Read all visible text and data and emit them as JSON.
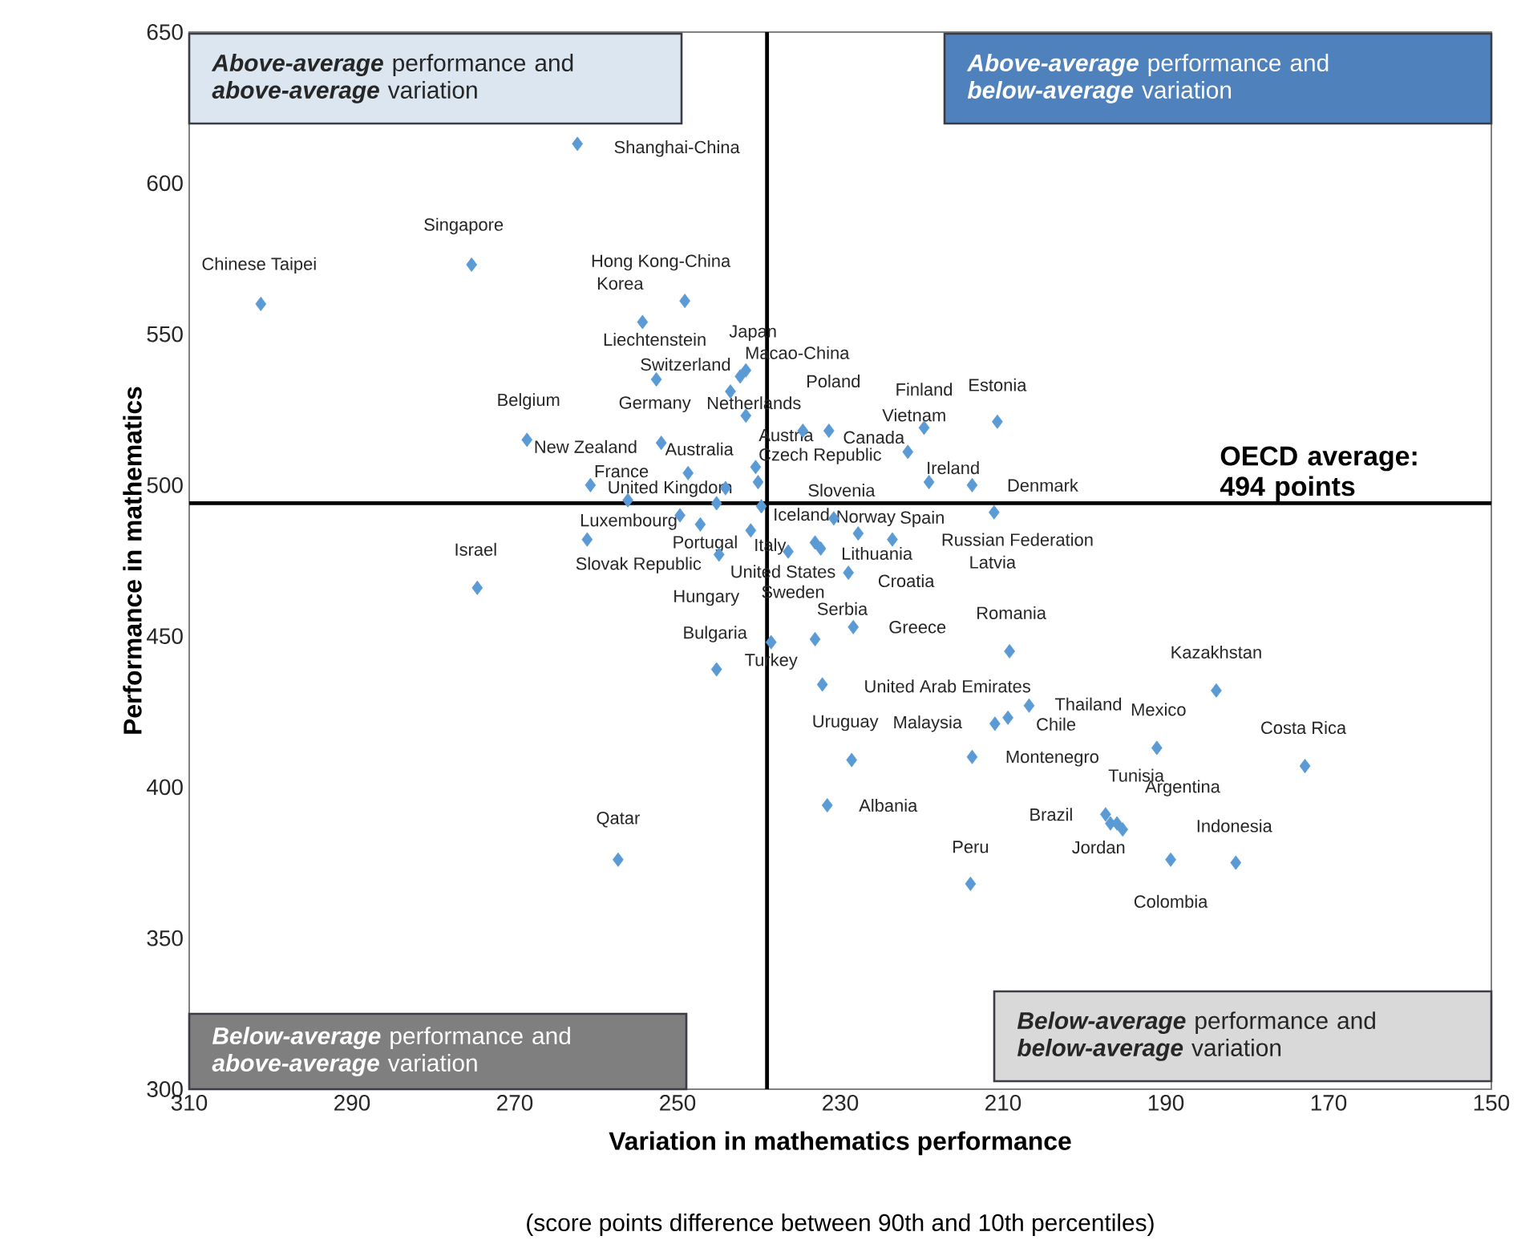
{
  "chart_data": {
    "type": "scatter",
    "xlabel": "Variation in mathematics performance",
    "ylabel": "Performance in mathematics",
    "xlim": [
      310,
      150
    ],
    "xticks": [
      310,
      290,
      270,
      250,
      230,
      210,
      190,
      170,
      150
    ],
    "ylim": [
      300,
      650
    ],
    "yticks": [
      300,
      350,
      400,
      450,
      500,
      550,
      600,
      650
    ],
    "marker": "diamond",
    "color": "#5b9bd5",
    "x": [
      262.3,
      275.3,
      301.2,
      249.1,
      254.3,
      252.6,
      241.6,
      242.3,
      243.5,
      241.6,
      210.7,
      219.7,
      231.4,
      234.6,
      268.5,
      252.0,
      221.7,
      240.4,
      248.7,
      219.1,
      240.1,
      213.8,
      260.7,
      244.1,
      256.1,
      245.2,
      239.7,
      211.1,
      249.7,
      230.8,
      247.2,
      241.0,
      227.8,
      223.6,
      261.1,
      233.1,
      232.4,
      236.4,
      244.9,
      229.0,
      274.6,
      228.4,
      233.1,
      238.5,
      209.2,
      245.2,
      232.2,
      183.8,
      206.8,
      209.4,
      211.0,
      191.1,
      213.8,
      228.6,
      172.9,
      231.6,
      197.4,
      196.8,
      196.0,
      195.3,
      189.4,
      257.3,
      181.4,
      214.0
    ],
    "values": [
      613,
      573,
      560,
      561,
      554,
      535,
      538,
      536,
      531,
      523,
      521,
      519,
      518,
      518,
      515,
      514,
      511,
      506,
      504,
      501,
      501,
      500,
      500,
      499,
      495,
      494,
      493,
      491,
      490,
      489,
      487,
      485,
      484,
      482,
      482,
      481,
      479,
      478,
      477,
      471,
      466,
      453,
      449,
      448,
      445,
      439,
      434,
      432,
      427,
      423,
      421,
      413,
      410,
      409,
      407,
      394,
      391,
      388,
      388,
      386,
      376,
      376,
      375,
      368
    ],
    "ref_lines": [
      {
        "axis": "y",
        "value": 494,
        "label": "OECD average: 494 points"
      },
      {
        "axis": "x",
        "value": 239
      }
    ],
    "annotations": [
      "**Above-average** performance and **above-average** variation",
      "**Above-average** performance and **below-average** variation",
      "**Below-average** performance and **above-average** variation",
      "**Below-average** performance and **below-average** variation",
      "(score points difference between 90th and 10th percentiles)",
      {
        "text": "Shanghai-China",
        "x": 262.3,
        "y": 613
      },
      {
        "text": "Singapore",
        "x": 275.3,
        "y": 573
      },
      {
        "text": "Chinese Taipei",
        "x": 301.2,
        "y": 560
      },
      {
        "text": "Hong Kong-China",
        "x": 249.1,
        "y": 561
      },
      {
        "text": "Korea",
        "x": 254.3,
        "y": 554
      },
      {
        "text": "Liechtenstein",
        "x": 252.6,
        "y": 535
      },
      {
        "text": "Macao-China",
        "x": 241.6,
        "y": 538
      },
      {
        "text": "Japan",
        "x": 242.3,
        "y": 536
      },
      {
        "text": "Switzerland",
        "x": 243.5,
        "y": 531
      },
      {
        "text": "Netherlands",
        "x": 241.6,
        "y": 523
      },
      {
        "text": "Estonia",
        "x": 210.7,
        "y": 521
      },
      {
        "text": "Finland",
        "x": 219.7,
        "y": 519
      },
      {
        "text": "Canada",
        "x": 231.4,
        "y": 518
      },
      {
        "text": "Poland",
        "x": 234.6,
        "y": 518
      },
      {
        "text": "Belgium",
        "x": 268.5,
        "y": 515
      },
      {
        "text": "Germany",
        "x": 252.0,
        "y": 514
      },
      {
        "text": "Vietnam",
        "x": 221.7,
        "y": 511
      },
      {
        "text": "Austria",
        "x": 240.4,
        "y": 506
      },
      {
        "text": "Australia",
        "x": 248.7,
        "y": 504
      },
      {
        "text": "Ireland",
        "x": 219.1,
        "y": 501
      },
      {
        "text": "Slovenia",
        "x": 240.1,
        "y": 501
      },
      {
        "text": "Denmark",
        "x": 213.8,
        "y": 500
      },
      {
        "text": "New Zealand",
        "x": 260.7,
        "y": 500
      },
      {
        "text": "Czech Republic",
        "x": 244.1,
        "y": 499
      },
      {
        "text": "France",
        "x": 256.1,
        "y": 495
      },
      {
        "text": "United Kingdom",
        "x": 245.2,
        "y": 494
      },
      {
        "text": "Iceland",
        "x": 239.7,
        "y": 493
      },
      {
        "text": "Latvia",
        "x": 211.1,
        "y": 491
      },
      {
        "text": "Luxembourg",
        "x": 249.7,
        "y": 490
      },
      {
        "text": "Norway",
        "x": 230.8,
        "y": 489
      },
      {
        "text": "Portugal",
        "x": 247.2,
        "y": 487
      },
      {
        "text": "Italy",
        "x": 241.0,
        "y": 485
      },
      {
        "text": "Spain",
        "x": 227.8,
        "y": 484
      },
      {
        "text": "Russian Federation",
        "x": 223.6,
        "y": 482
      },
      {
        "text": "Slovak Republic",
        "x": 261.1,
        "y": 482
      },
      {
        "text": "United States",
        "x": 233.1,
        "y": 481
      },
      {
        "text": "Lithuania",
        "x": 232.4,
        "y": 479
      },
      {
        "text": "Sweden",
        "x": 236.4,
        "y": 478
      },
      {
        "text": "Hungary",
        "x": 244.9,
        "y": 477
      },
      {
        "text": "Croatia",
        "x": 229.0,
        "y": 471
      },
      {
        "text": "Israel",
        "x": 274.6,
        "y": 466
      },
      {
        "text": "Greece",
        "x": 228.4,
        "y": 453
      },
      {
        "text": "Serbia",
        "x": 233.1,
        "y": 449
      },
      {
        "text": "Turkey",
        "x": 238.5,
        "y": 448
      },
      {
        "text": "Romania",
        "x": 209.2,
        "y": 445
      },
      {
        "text": "Bulgaria",
        "x": 245.2,
        "y": 439
      },
      {
        "text": "United Arab Emirates",
        "x": 232.2,
        "y": 434
      },
      {
        "text": "Kazakhstan",
        "x": 183.8,
        "y": 432
      },
      {
        "text": "Thailand",
        "x": 206.8,
        "y": 427
      },
      {
        "text": "Chile",
        "x": 209.4,
        "y": 423
      },
      {
        "text": "Malaysia",
        "x": 211.0,
        "y": 421
      },
      {
        "text": "Mexico",
        "x": 191.1,
        "y": 413
      },
      {
        "text": "Montenegro",
        "x": 213.8,
        "y": 410
      },
      {
        "text": "Uruguay",
        "x": 228.6,
        "y": 409
      },
      {
        "text": "Costa Rica",
        "x": 172.9,
        "y": 407
      },
      {
        "text": "Albania",
        "x": 231.6,
        "y": 394
      },
      {
        "text": "Brazil",
        "x": 197.4,
        "y": 391
      },
      {
        "text": "Argentina",
        "x": 196.8,
        "y": 388
      },
      {
        "text": "Tunisia",
        "x": 196.0,
        "y": 388
      },
      {
        "text": "Jordan",
        "x": 195.3,
        "y": 386
      },
      {
        "text": "Colombia",
        "x": 189.4,
        "y": 376
      },
      {
        "text": "Qatar",
        "x": 257.3,
        "y": 376
      },
      {
        "text": "Indonesia",
        "x": 181.4,
        "y": 375
      },
      {
        "text": "Peru",
        "x": 214.0,
        "y": 368
      }
    ]
  }
}
